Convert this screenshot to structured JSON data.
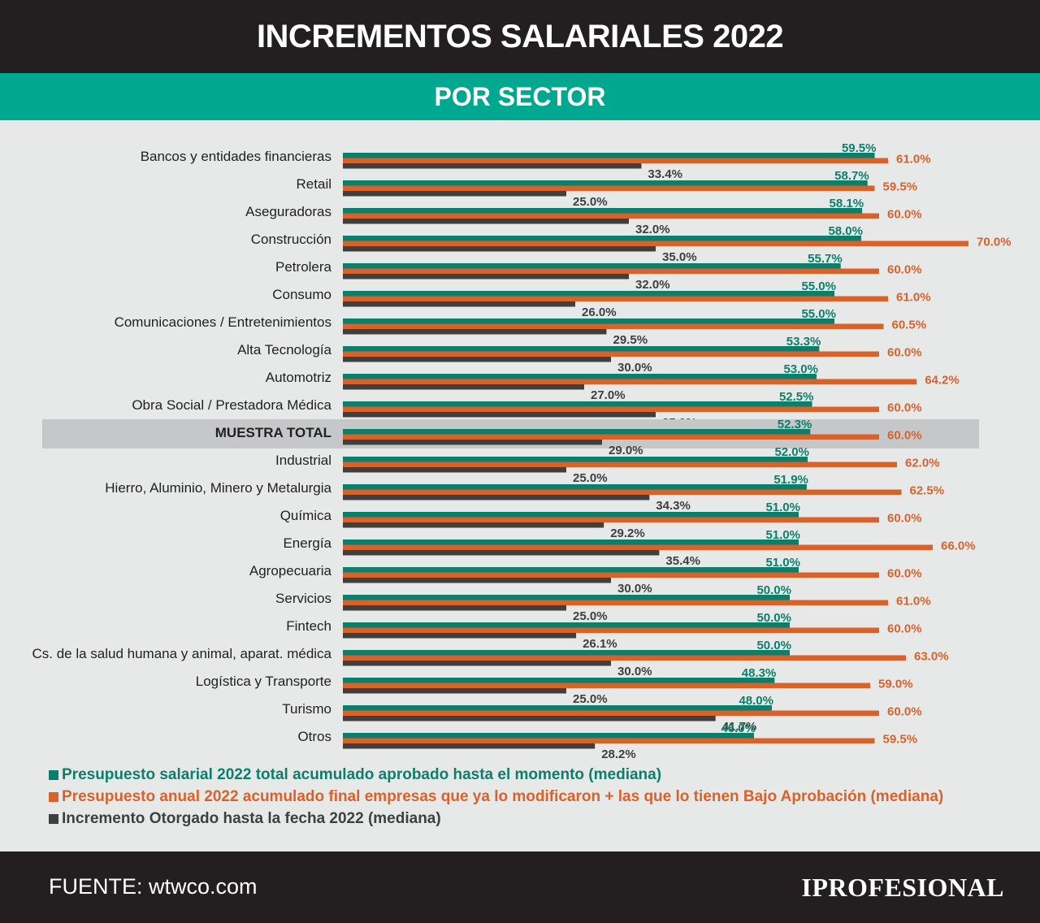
{
  "header": {
    "title": "INCREMENTOS SALARIALES 2022",
    "subtitle": "POR SECTOR"
  },
  "colors": {
    "approved": "#0b7f6b",
    "final": "#d9622b",
    "granted": "#3f3f3f",
    "highlight_band": "#c6c7c8",
    "teal_band": "#00a88f",
    "dark": "#231f20"
  },
  "chart_data": {
    "type": "bar",
    "orientation": "horizontal",
    "categories": [
      "Bancos y entidades financieras",
      "Retail",
      "Aseguradoras",
      "Construcción",
      "Petrolera",
      "Consumo",
      "Comunicaciones / Entretenimientos",
      "Alta Tecnología",
      "Automotriz",
      "Obra Social / Prestadora Médica",
      "MUESTRA TOTAL",
      "Industrial",
      "Hierro, Aluminio, Minero y Metalurgia",
      "Química",
      "Energía",
      "Agropecuaria",
      "Servicios",
      "Fintech",
      "Cs. de la salud humana y animal, aparat. médica",
      "Logística y Transporte",
      "Turismo",
      "Otros"
    ],
    "highlighted_category": "MUESTRA TOTAL",
    "series": [
      {
        "name": "Presupuesto salarial 2022 total acumulado aprobado hasta el momento (mediana)",
        "color": "#0b7f6b",
        "values": [
          59.5,
          58.7,
          58.1,
          58.0,
          55.7,
          55.0,
          55.0,
          53.3,
          53.0,
          52.5,
          52.3,
          52.0,
          51.9,
          51.0,
          51.0,
          51.0,
          50.0,
          50.0,
          50.0,
          48.3,
          48.0,
          46.0
        ],
        "labels": [
          "59.5%",
          "58.7%",
          "58.1%",
          "58.0%",
          "55.7%",
          "55.0%",
          "55.0%",
          "53.3%",
          "53.0%",
          "52.5%",
          "52.3%",
          "52.0%",
          "51.9%",
          "51.0%",
          "51.0%",
          "51.0%",
          "50.0%",
          "50.0%",
          "50.0%",
          "48.3%",
          "48.0%",
          "46.0%"
        ]
      },
      {
        "name": "Presupuesto anual 2022 acumulado final empresas que ya lo modificaron + las que lo tienen Bajo Aprobación (mediana)",
        "color": "#d9622b",
        "values": [
          61.0,
          59.5,
          60.0,
          70.0,
          60.0,
          61.0,
          60.5,
          60.0,
          64.2,
          60.0,
          60.0,
          62.0,
          62.5,
          60.0,
          66.0,
          60.0,
          61.0,
          60.0,
          63.0,
          59.0,
          60.0,
          59.5
        ],
        "labels": [
          "61.0%",
          "59.5%",
          "60.0%",
          "70.0%",
          "60.0%",
          "61.0%",
          "60.5%",
          "60.0%",
          "64.2%",
          "60.0%",
          "60.0%",
          "62.0%",
          "62.5%",
          "60.0%",
          "66.0%",
          "60.0%",
          "61.0%",
          "60.0%",
          "63.0%",
          "59.0%",
          "60.0%",
          "59.5%"
        ]
      },
      {
        "name": "Incremento Otorgado hasta la fecha 2022 (mediana)",
        "color": "#3f3f3f",
        "values": [
          33.4,
          25.0,
          32.0,
          35.0,
          32.0,
          26.0,
          29.5,
          30.0,
          27.0,
          35.0,
          29.0,
          25.0,
          34.3,
          29.2,
          35.4,
          30.0,
          25.0,
          26.1,
          30.0,
          25.0,
          41.7,
          28.2
        ],
        "labels": [
          "33.4%",
          "25.0%",
          "32.0%",
          "35.0%",
          "32.0%",
          "26.0%",
          "29.5%",
          "30.0%",
          "27.0%",
          "35.0%",
          "29.0%",
          "25.0%",
          "34.3%",
          "29.2%",
          "35.4%",
          "30.0%",
          "25.0%",
          "26.1%",
          "30.0%",
          "25.0%",
          "41.7%",
          "28.2%"
        ]
      }
    ],
    "xlim": [
      0,
      70
    ],
    "legend_position": "bottom-left",
    "grid": false
  },
  "footer": {
    "source": "FUENTE: wtwco.com",
    "logo": "IPROFESIONAL"
  }
}
